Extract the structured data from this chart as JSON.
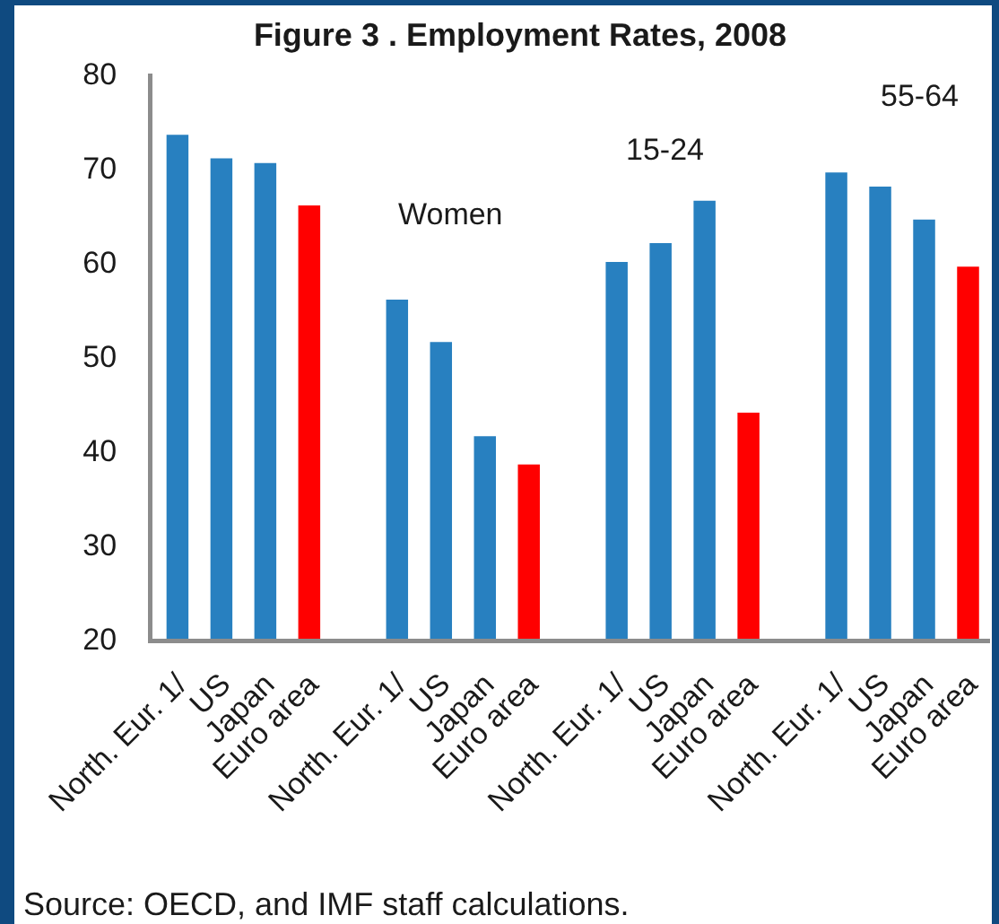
{
  "chart_data": {
    "type": "bar",
    "title": "Figure 3 . Employment Rates, 2008",
    "categories": [
      "North. Eur. 1/",
      "US",
      "Japan",
      "Euro area",
      null,
      "North. Eur. 1/",
      "US",
      "Japan",
      "Euro area",
      null,
      "North. Eur. 1/",
      "US",
      "Japan",
      "Euro area",
      null,
      "North. Eur. 1/",
      "US",
      "Japan",
      "Euro area"
    ],
    "values": [
      73.5,
      71,
      70.5,
      66,
      null,
      56,
      51.5,
      41.5,
      38.5,
      null,
      60,
      62,
      66.5,
      44,
      null,
      69.5,
      68,
      64.5,
      59.5
    ],
    "colors": [
      "#2880c0",
      "#2880c0",
      "#2880c0",
      "#ff0000",
      null,
      "#2880c0",
      "#2880c0",
      "#2880c0",
      "#ff0000",
      null,
      "#2880c0",
      "#2880c0",
      "#2880c0",
      "#ff0000",
      null,
      "#2880c0",
      "#2880c0",
      "#2880c0",
      "#ff0000"
    ],
    "ylim": [
      20,
      80
    ],
    "yticks": [
      20,
      30,
      40,
      50,
      60,
      70,
      80
    ],
    "annotations": [
      "Women",
      "15-24",
      "55-64",
      "Source: OECD, and IMF staff calculations."
    ]
  }
}
